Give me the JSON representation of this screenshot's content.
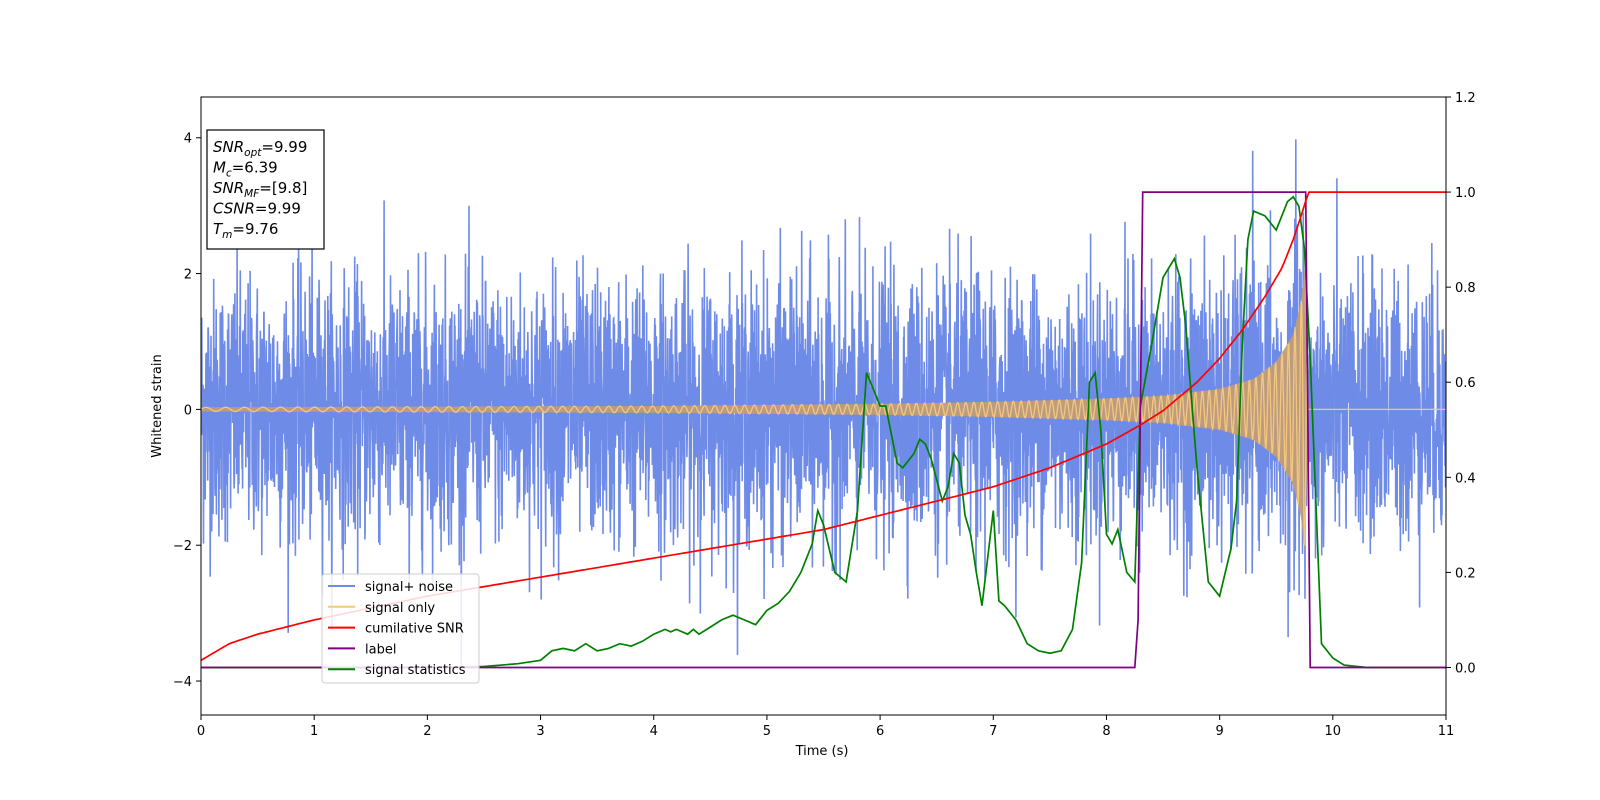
{
  "chart_data": {
    "type": "line",
    "xlabel": "Time (s)",
    "ylabel": "Whitened strain",
    "xlim": [
      0,
      11
    ],
    "ylim_left": [
      -4.5,
      4.6
    ],
    "ylim_right": [
      -0.1,
      1.2
    ],
    "x_ticks": [
      "0",
      "1",
      "2",
      "3",
      "4",
      "5",
      "6",
      "7",
      "8",
      "9",
      "10",
      "11"
    ],
    "y_left_ticks": [
      "−4",
      "−2",
      "0",
      "2",
      "4"
    ],
    "y_left_tick_values": [
      -4,
      -2,
      0,
      2,
      4
    ],
    "y_right_ticks": [
      "0.0",
      "0.2",
      "0.4",
      "0.6",
      "0.8",
      "1.0",
      "1.2"
    ],
    "y_right_tick_values": [
      0.0,
      0.2,
      0.4,
      0.6,
      0.8,
      1.0,
      1.2
    ],
    "grid": false,
    "legend_position": "lower-left",
    "colors": {
      "noise": "#6f8be8",
      "signal": "#f5c77e",
      "cumsnr": "#ff0000",
      "label": "#800080",
      "stats": "#008000"
    },
    "series": [
      {
        "name": "signal+ noise",
        "axis": "left",
        "description_range": [
          -4.1,
          4.2
        ]
      },
      {
        "name": "signal only",
        "axis": "left",
        "envelope": {
          "x": [
            0,
            2,
            4,
            6,
            7,
            8,
            8.5,
            9,
            9.3,
            9.5,
            9.65,
            9.72,
            9.76,
            9.78,
            11
          ],
          "y": [
            0.03,
            0.04,
            0.05,
            0.08,
            0.11,
            0.16,
            0.2,
            0.3,
            0.45,
            0.7,
            1.1,
            1.6,
            2.2,
            0.0,
            0.0
          ]
        }
      },
      {
        "name": "cumilative SNR",
        "axis": "right",
        "x": [
          0,
          0.25,
          0.5,
          1,
          2,
          3,
          4,
          5,
          5.5,
          6,
          6.5,
          7,
          7.5,
          8,
          8.3,
          8.5,
          8.8,
          9,
          9.2,
          9.4,
          9.55,
          9.65,
          9.72,
          9.76,
          9.78,
          11
        ],
        "y": [
          0.015,
          0.05,
          0.07,
          0.1,
          0.15,
          0.19,
          0.23,
          0.27,
          0.29,
          0.32,
          0.35,
          0.38,
          0.42,
          0.47,
          0.51,
          0.54,
          0.6,
          0.65,
          0.71,
          0.78,
          0.84,
          0.9,
          0.95,
          0.98,
          1.0,
          1.0
        ]
      },
      {
        "name": "label",
        "axis": "right",
        "x": [
          0,
          8.25,
          8.28,
          8.32,
          9.76,
          9.8,
          11
        ],
        "y": [
          0,
          0,
          0.1,
          1.0,
          1.0,
          0,
          0
        ]
      },
      {
        "name": "signal statistics",
        "axis": "right",
        "x": [
          0,
          2,
          2.5,
          2.8,
          3.0,
          3.1,
          3.2,
          3.3,
          3.4,
          3.5,
          3.6,
          3.7,
          3.8,
          3.9,
          4.0,
          4.1,
          4.15,
          4.2,
          4.3,
          4.35,
          4.4,
          4.5,
          4.6,
          4.7,
          4.8,
          4.9,
          5.0,
          5.1,
          5.2,
          5.3,
          5.4,
          5.45,
          5.5,
          5.6,
          5.7,
          5.8,
          5.88,
          5.95,
          6.0,
          6.05,
          6.15,
          6.2,
          6.3,
          6.35,
          6.4,
          6.45,
          6.55,
          6.6,
          6.65,
          6.7,
          6.75,
          6.8,
          6.85,
          6.9,
          7.0,
          7.05,
          7.1,
          7.2,
          7.3,
          7.4,
          7.5,
          7.6,
          7.7,
          7.78,
          7.85,
          7.9,
          7.95,
          8.0,
          8.05,
          8.1,
          8.18,
          8.25,
          8.3,
          8.4,
          8.5,
          8.6,
          8.65,
          8.7,
          8.8,
          8.9,
          9.0,
          9.1,
          9.15,
          9.2,
          9.25,
          9.3,
          9.4,
          9.5,
          9.6,
          9.65,
          9.7,
          9.75,
          9.8,
          9.9,
          10.0,
          10.1,
          10.3,
          11
        ],
        "y": [
          0.0,
          0.0,
          0.002,
          0.008,
          0.015,
          0.035,
          0.04,
          0.035,
          0.05,
          0.035,
          0.04,
          0.05,
          0.045,
          0.055,
          0.07,
          0.08,
          0.075,
          0.08,
          0.07,
          0.08,
          0.07,
          0.085,
          0.1,
          0.11,
          0.1,
          0.09,
          0.12,
          0.135,
          0.16,
          0.2,
          0.26,
          0.33,
          0.3,
          0.2,
          0.18,
          0.33,
          0.62,
          0.58,
          0.55,
          0.55,
          0.43,
          0.42,
          0.45,
          0.48,
          0.47,
          0.44,
          0.35,
          0.38,
          0.45,
          0.43,
          0.32,
          0.28,
          0.2,
          0.13,
          0.33,
          0.14,
          0.13,
          0.1,
          0.05,
          0.035,
          0.03,
          0.035,
          0.08,
          0.22,
          0.6,
          0.62,
          0.5,
          0.28,
          0.26,
          0.29,
          0.2,
          0.18,
          0.55,
          0.68,
          0.82,
          0.86,
          0.82,
          0.72,
          0.42,
          0.18,
          0.15,
          0.25,
          0.35,
          0.68,
          0.9,
          0.96,
          0.95,
          0.92,
          0.98,
          0.99,
          0.97,
          0.88,
          0.65,
          0.05,
          0.02,
          0.005,
          0.0,
          0.0
        ]
      }
    ],
    "annotation": {
      "lines": [
        {
          "main": "SNR",
          "sub": "opt",
          "rest": "=9.99"
        },
        {
          "main": "M",
          "sub": "c",
          "rest": "=6.39"
        },
        {
          "main": "SNR",
          "sub": "MF",
          "rest": "=[9.8]"
        },
        {
          "main": "CSNR",
          "sub": "",
          "rest": "=9.99"
        },
        {
          "main": "T",
          "sub": "m",
          "rest": "=9.76"
        }
      ]
    }
  }
}
